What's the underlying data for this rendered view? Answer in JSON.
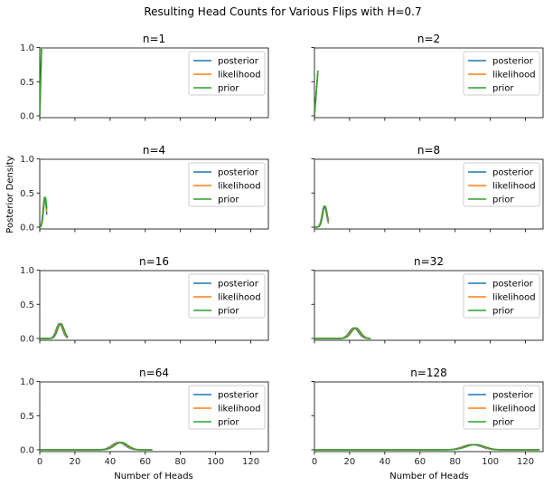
{
  "figure": {
    "suptitle": "Resulting Head Counts for Various Flips with H=0.7",
    "ylabel": "Posterior Density",
    "xlabel": "Number of Heads"
  },
  "legend": [
    {
      "name": "posterior",
      "color": "#1f77b4"
    },
    {
      "name": "likelihood",
      "color": "#ff7f0e"
    },
    {
      "name": "prior",
      "color": "#2ca02c"
    }
  ],
  "chart_data": {
    "type": "line",
    "title": "Resulting Head Counts for Various Flips with H=0.7",
    "xlim": [
      0,
      130
    ],
    "ylim": [
      0,
      1.0
    ],
    "x_ticks": [
      0,
      20,
      40,
      60,
      80,
      100,
      120
    ],
    "y_ticks": [
      0.0,
      0.5,
      1.0
    ],
    "p": 0.7,
    "legend_location": "upper right",
    "series_names": [
      "posterior",
      "likelihood",
      "prior"
    ],
    "panels": [
      {
        "title": "n=1",
        "n": 1,
        "shift": [
          0,
          0.05,
          0.1
        ]
      },
      {
        "title": "n=2",
        "n": 2,
        "shift": [
          0,
          0.05,
          0.1
        ]
      },
      {
        "title": "n=4",
        "n": 4,
        "shift": [
          0,
          0.15,
          0.3
        ]
      },
      {
        "title": "n=8",
        "n": 8,
        "shift": [
          0,
          0.2,
          0.4
        ]
      },
      {
        "title": "n=16",
        "n": 16,
        "shift": [
          0,
          0.4,
          0.8
        ]
      },
      {
        "title": "n=32",
        "n": 32,
        "shift": [
          0,
          0.6,
          1.2
        ]
      },
      {
        "title": "n=64",
        "n": 64,
        "shift": [
          0,
          0.8,
          1.6
        ]
      },
      {
        "title": "n=128",
        "n": 128,
        "shift": [
          0,
          1.0,
          2.0
        ]
      }
    ]
  }
}
